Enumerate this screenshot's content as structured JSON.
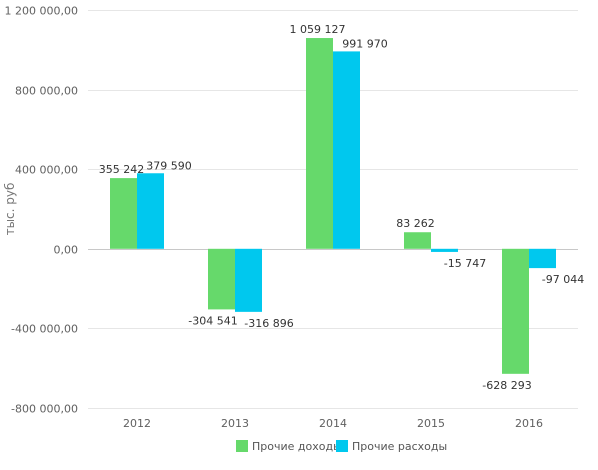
{
  "chart_data": {
    "type": "bar",
    "ylabel": "тыс. руб",
    "categories": [
      "2012",
      "2013",
      "2014",
      "2015",
      "2016"
    ],
    "series": [
      {
        "name": "Прочие доходы",
        "color": "#66d96b",
        "values": [
          355242,
          -304541,
          1059127,
          83262,
          -628293
        ],
        "labels": [
          "355 242",
          "-304 541",
          "1 059 127",
          "83 262",
          "-628 293"
        ]
      },
      {
        "name": "Прочие расходы",
        "color": "#00c8ee",
        "values": [
          379590,
          -316896,
          991970,
          -15747,
          -97044
        ],
        "labels": [
          "379 590",
          "-316 896",
          "991 970",
          "-15 747",
          "-97 044"
        ]
      }
    ],
    "ylim": [
      -800000,
      1200000
    ],
    "yticks": [
      -800000,
      -400000,
      0,
      400000,
      800000,
      1200000
    ],
    "ytick_labels": [
      "-800 000,00",
      "-400 000,00",
      "0,00",
      "400 000,00",
      "800 000,00",
      "1 200 000,00"
    ],
    "grid": true,
    "legend_position": "bottom"
  }
}
